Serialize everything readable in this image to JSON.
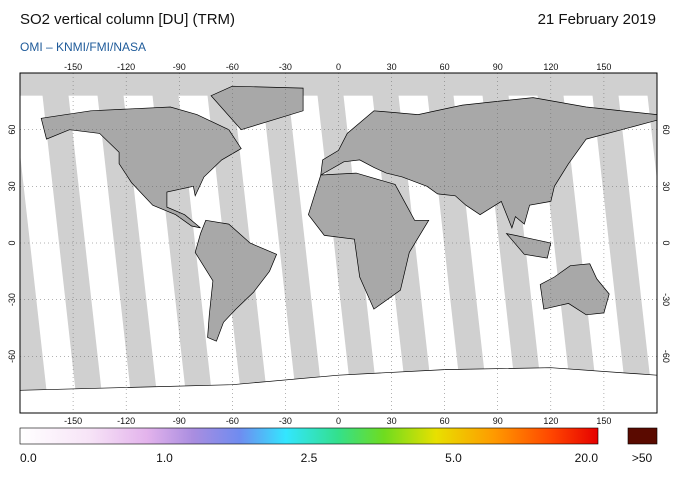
{
  "header": {
    "title": "SO2 vertical column [DU] (TRM)",
    "date": "21 February 2019",
    "credit": "OMI  –  KNMI/FMI/NASA"
  },
  "map": {
    "lonlim": [
      -180,
      180
    ],
    "latlim": [
      -90,
      90
    ],
    "lon_ticks": [
      -150,
      -120,
      -90,
      -60,
      -30,
      0,
      30,
      60,
      90,
      120,
      150
    ],
    "lat_ticks": [
      -60,
      -30,
      0,
      30,
      60
    ]
  },
  "colorbar": {
    "labels": [
      "0.0",
      "1.0",
      "2.5",
      "5.0",
      "20.0"
    ],
    "overflow_label": ">50"
  }
}
